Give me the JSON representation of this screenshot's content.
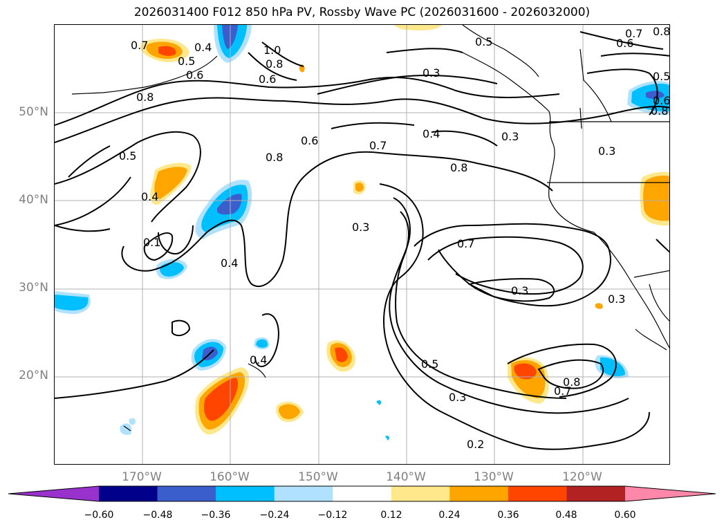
{
  "title": "2026031400 F012 850 hPa PV, Rossby Wave PC (2026031600 - 2026032000)",
  "axes": {
    "lat_labels": [
      "50°N",
      "40°N",
      "30°N",
      "20°N"
    ],
    "lon_labels": [
      "170°W",
      "160°W",
      "150°W",
      "140°W",
      "130°W",
      "120°W"
    ],
    "lat_values": [
      50,
      40,
      30,
      20
    ],
    "lon_values": [
      -170,
      -160,
      -150,
      -140,
      -130,
      -120
    ],
    "lon_range": [
      -180,
      -110
    ],
    "lat_range": [
      10,
      60
    ],
    "grid": true
  },
  "colorbar": {
    "tick_labels": [
      "−0.60",
      "−0.48",
      "−0.36",
      "−0.24",
      "−0.12",
      "0.12",
      "0.24",
      "0.36",
      "0.48",
      "0.60"
    ],
    "tick_values": [
      -0.6,
      -0.48,
      -0.36,
      -0.24,
      -0.12,
      0.12,
      0.24,
      0.36,
      0.48,
      0.6
    ],
    "colors": [
      "#9932cc",
      "#00008b",
      "#3a5fcd",
      "#00bfff",
      "#b0e2ff",
      "#ffffff",
      "#ffe88c",
      "#ffa500",
      "#ff4500",
      "#b22222",
      "#ff88aa"
    ],
    "extend": "both"
  },
  "contour_labels": [
    {
      "text": "0.7"
    },
    {
      "text": "0.4"
    },
    {
      "text": "0.5"
    },
    {
      "text": "0.6"
    },
    {
      "text": "0.8"
    },
    {
      "text": "1.0"
    },
    {
      "text": "0.8"
    },
    {
      "text": "0.6"
    },
    {
      "text": "0.5"
    },
    {
      "text": "0.3"
    },
    {
      "text": "0.7"
    },
    {
      "text": "0.6"
    },
    {
      "text": "0.8"
    },
    {
      "text": "0.5"
    },
    {
      "text": "0.6"
    },
    {
      "text": "0.8"
    },
    {
      "text": "0.5"
    },
    {
      "text": "0.6"
    },
    {
      "text": "0.7"
    },
    {
      "text": "0.4"
    },
    {
      "text": "0.3"
    },
    {
      "text": "0.3"
    },
    {
      "text": "0.8"
    },
    {
      "text": "0.8"
    },
    {
      "text": "0.4"
    },
    {
      "text": "0.1"
    },
    {
      "text": "0.4"
    },
    {
      "text": "0.3"
    },
    {
      "text": "0.7"
    },
    {
      "text": "0.3"
    },
    {
      "text": "0.3"
    },
    {
      "text": "0.4"
    },
    {
      "text": "0.5"
    },
    {
      "text": "0.3"
    },
    {
      "text": "0.8"
    },
    {
      "text": "0.7"
    },
    {
      "text": "0.2"
    }
  ]
}
